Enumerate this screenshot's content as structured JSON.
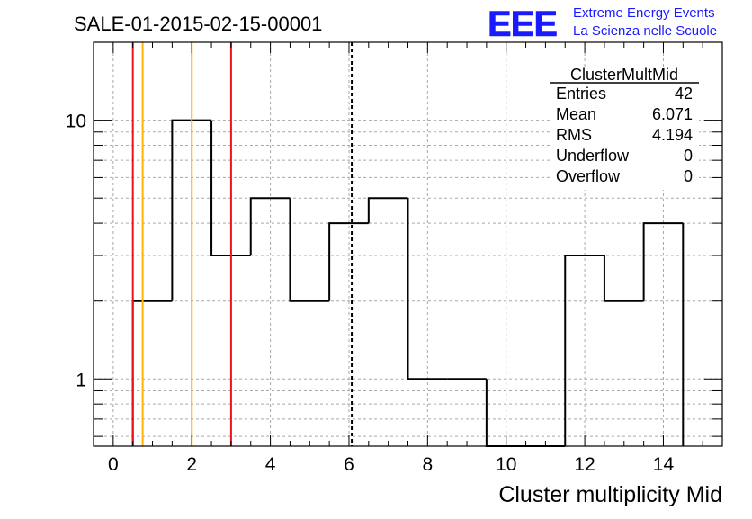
{
  "run_title": "SALE-01-2015-02-15-00001",
  "logo": {
    "mark": "EEE",
    "line1": "Extreme Energy Events",
    "line2": "La Scienza nelle Scuole",
    "color": "#1a1aff"
  },
  "stats_box": {
    "title": "ClusterMultMid",
    "rows": [
      {
        "label": "Entries",
        "value": "42"
      },
      {
        "label": "Mean",
        "value": "6.071"
      },
      {
        "label": "RMS",
        "value": "4.194"
      },
      {
        "label": "Underflow",
        "value": "0"
      },
      {
        "label": "Overflow",
        "value": "0"
      }
    ]
  },
  "chart_data": {
    "type": "histogram",
    "xlabel": "Cluster multiplicity Mid",
    "ylabel": "",
    "xlim": [
      -0.5,
      15.5
    ],
    "ylim": [
      0.55,
      20
    ],
    "yscale": "log",
    "grid": true,
    "x_ticks": [
      0,
      2,
      4,
      6,
      8,
      10,
      12,
      14
    ],
    "y_ticks": [
      {
        "value": 1,
        "label": "1"
      },
      {
        "value": 10,
        "label": "10"
      }
    ],
    "bin_edges": [
      0.5,
      1.5,
      2.5,
      3.5,
      4.5,
      5.5,
      6.5,
      7.5,
      8.5,
      9.5,
      10.5,
      11.5,
      12.5,
      13.5,
      14.5
    ],
    "counts": [
      2,
      10,
      3,
      5,
      2,
      4,
      5,
      1,
      1,
      0,
      0,
      3,
      2,
      4
    ],
    "vertical_lines": [
      {
        "x": 0.5,
        "color": "#e8161a",
        "style": "solid"
      },
      {
        "x": 0.75,
        "color": "#ffb400",
        "style": "solid"
      },
      {
        "x": 2.0,
        "color": "#ffb400",
        "style": "solid"
      },
      {
        "x": 3.0,
        "color": "#e8161a",
        "style": "solid"
      },
      {
        "x": 6.071,
        "color": "#000000",
        "style": "dashed"
      }
    ]
  }
}
